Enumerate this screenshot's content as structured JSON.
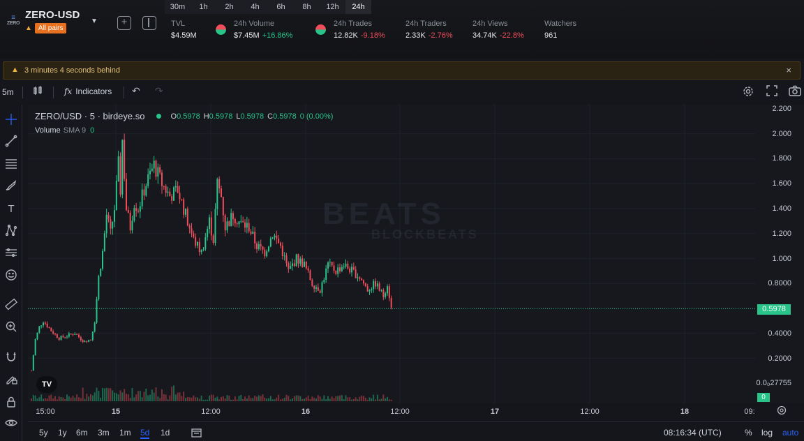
{
  "header": {
    "pair_logo": "ZERO",
    "pair_name": "ZERO-USD",
    "pair_badge": "All pairs",
    "timeframes": [
      "30m",
      "1h",
      "2h",
      "4h",
      "6h",
      "8h",
      "12h",
      "24h"
    ],
    "active_timeframe": "24h",
    "stats": {
      "tvl_label": "TVL",
      "tvl_value": "$4.59M",
      "volume_label": "24h Volume",
      "volume_value": "$7.45M",
      "volume_change": "+16.86%",
      "trades_label": "24h Trades",
      "trades_value": "12.82K",
      "trades_change": "-9.18%",
      "traders_label": "24h Traders",
      "traders_value": "2.33K",
      "traders_change": "-2.76%",
      "views_label": "24h Views",
      "views_value": "34.74K",
      "views_change": "-22.8%",
      "watchers_label": "Watchers",
      "watchers_value": "961"
    }
  },
  "banner": {
    "text": "3 minutes 4 seconds behind",
    "close": "×"
  },
  "toolbar": {
    "interval": "5m",
    "indicators_label": "Indicators",
    "fx": "fx"
  },
  "legend": {
    "symbol": "ZERO/USD · 5 · birdeye.so",
    "o_label": "O",
    "o": "0.5978",
    "h_label": "H",
    "h": "0.5978",
    "l_label": "L",
    "l": "0.5978",
    "c_label": "C",
    "c": "0.5978",
    "change": "0 (0.00%)",
    "volume_label": "Volume",
    "volume_sma": "SMA 9",
    "volume_value": "0"
  },
  "watermark": {
    "top": "BEATS",
    "bottom": "BLOCKBEATS"
  },
  "tv_logo": "TV",
  "price_axis": {
    "labels": [
      "2.200",
      "2.000",
      "1.800",
      "1.600",
      "1.400",
      "1.200",
      "1.000",
      "0.8000",
      "0.4000",
      "0.2000",
      "0.0₀27755"
    ],
    "current_price": "0.5978",
    "volume_tag": "0"
  },
  "time_axis": {
    "labels": [
      "15:00",
      "15",
      "12:00",
      "16",
      "12:00",
      "17",
      "12:00",
      "18",
      "09:"
    ]
  },
  "bottom": {
    "ranges": [
      "5y",
      "1y",
      "6m",
      "3m",
      "1m",
      "5d",
      "1d"
    ],
    "active_range": "5d",
    "clock": "08:16:34 (UTC)",
    "percent": "%",
    "log": "log",
    "auto": "auto"
  },
  "chart_data": {
    "type": "line",
    "title": "",
    "xlabel": "",
    "ylabel": "",
    "x": [
      "14 13:00",
      "14 14:00",
      "14 15:00",
      "14 16:00",
      "14 18:00",
      "14 20:00",
      "14 22:00",
      "15 00:00",
      "15 02:00",
      "15 04:00",
      "15 05:00",
      "15 06:00",
      "15 07:00",
      "15 08:00",
      "15 09:00",
      "15 10:00",
      "15 11:00",
      "15 11:30",
      "15 12:00",
      "15 13:00",
      "15 14:00",
      "15 15:00",
      "15 16:00",
      "15 18:00",
      "15 20:00",
      "15 22:00",
      "16 00:00",
      "16 02:00",
      "16 04:00",
      "16 06:00",
      "16 08:00",
      "16 10:00",
      "16 11:00",
      "16 12:00",
      "16 13:00",
      "16 14:00",
      "16 16:00",
      "16 18:00",
      "16 20:00",
      "16 22:00",
      "17 00:00",
      "17 02:00",
      "17 04:00",
      "17 06:00",
      "17 08:00",
      "17 10:00",
      "17 12:00",
      "17 14:00",
      "17 16:00",
      "17 18:00",
      "17 20:00",
      "17 22:00",
      "18 00:00",
      "18 02:00",
      "18 04:00",
      "18 06:00",
      "18 07:00",
      "18 08:00"
    ],
    "series": [
      {
        "values": [
          0.1,
          0.35,
          0.45,
          0.5,
          0.42,
          0.36,
          0.38,
          0.4,
          0.34,
          0.35,
          0.5,
          0.85,
          1.05,
          1.35,
          1.2,
          1.4,
          1.75,
          1.55,
          1.95,
          1.4,
          1.25,
          1.45,
          1.4,
          1.6,
          1.75,
          1.6,
          1.5,
          1.55,
          1.35,
          1.15,
          1.05,
          1.3,
          1.15,
          1.6,
          1.5,
          1.25,
          1.35,
          1.28,
          1.25,
          1.1,
          1.05,
          1.2,
          1.1,
          0.9,
          1.0,
          0.95,
          0.8,
          0.75,
          0.95,
          0.9,
          0.95,
          0.9,
          0.85,
          0.75,
          0.8,
          0.7,
          0.8,
          0.6
        ]
      }
    ],
    "ylim": [
      0,
      2.2
    ],
    "price_lines": [
      0.5978
    ],
    "grid": true,
    "candles": true
  }
}
